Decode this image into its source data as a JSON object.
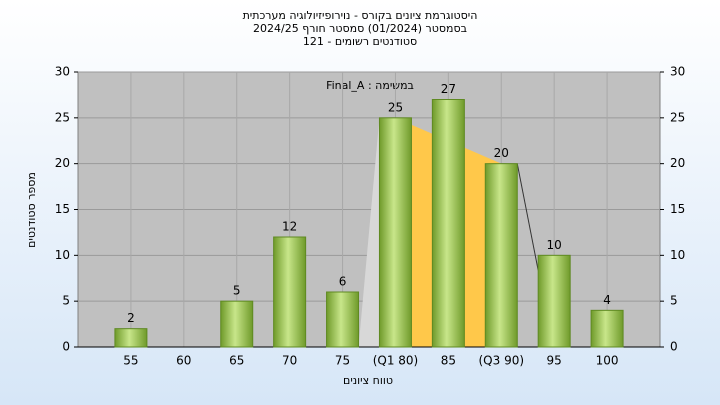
{
  "chart_data": {
    "type": "bar",
    "title": "היסטוגרמת ציונים בקורס - נוירופיזיולוגיה מערכתית",
    "subtitle": "בסמסטר  (01/2024)  סמסטר חורף 2024/25",
    "subtitle2": "סטודנטים רשומים - 121",
    "annotation": "Final_A : במשימה",
    "y_label": "מספר סטודנטים",
    "x_label": "טווח ציונים",
    "categories": [
      "55",
      "60",
      "65",
      "70",
      "75",
      "(Q1 80)",
      "85",
      "(Q3 90)",
      "95",
      "100"
    ],
    "values": [
      2,
      null,
      5,
      12,
      6,
      25,
      27,
      20,
      10,
      4
    ],
    "color": "#8fbf3f",
    "ylim": [
      0,
      30
    ],
    "yticks": [
      0,
      5,
      10,
      15,
      20,
      25,
      30
    ],
    "grid": true
  }
}
